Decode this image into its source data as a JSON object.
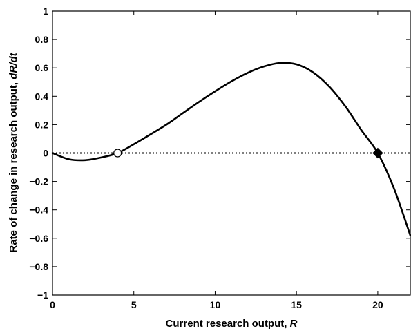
{
  "chart_data": {
    "type": "line",
    "title": "",
    "xlabel": "Current research output, ",
    "xlabel_var": "R",
    "ylabel": "Rate of change in research output,  ",
    "ylabel_var": "dR/dt",
    "xlim": [
      0,
      22
    ],
    "ylim": [
      -1,
      1
    ],
    "grid": false,
    "x_ticks": [
      0,
      5,
      10,
      15,
      20
    ],
    "y_ticks": [
      -1,
      -0.8,
      -0.6,
      -0.4,
      -0.2,
      0,
      0.2,
      0.4,
      0.6,
      0.8,
      1
    ],
    "x_tick_labels": [
      "0",
      "5",
      "10",
      "15",
      "20"
    ],
    "y_tick_labels": [
      "−1",
      "−0.8",
      "−0.6",
      "−0.4",
      "−0.2",
      "0",
      "0.2",
      "0.4",
      "0.6",
      "0.8",
      "1"
    ],
    "series": [
      {
        "style": "solid",
        "color": "#000000",
        "points": [
          [
            0,
            0
          ],
          [
            1,
            -0.043
          ],
          [
            2,
            -0.05
          ],
          [
            3,
            -0.031
          ],
          [
            4,
            0
          ],
          [
            5,
            0.062
          ],
          [
            6,
            0.13
          ],
          [
            7,
            0.2
          ],
          [
            8,
            0.28
          ],
          [
            9,
            0.36
          ],
          [
            10,
            0.435
          ],
          [
            11,
            0.505
          ],
          [
            12,
            0.565
          ],
          [
            13,
            0.61
          ],
          [
            14,
            0.635
          ],
          [
            15,
            0.625
          ],
          [
            16,
            0.57
          ],
          [
            17,
            0.47
          ],
          [
            18,
            0.33
          ],
          [
            19,
            0.16
          ],
          [
            20,
            0
          ],
          [
            21,
            -0.25
          ],
          [
            22,
            -0.58
          ]
        ]
      },
      {
        "style": "dotted",
        "color": "#000000",
        "points": [
          [
            0,
            0
          ],
          [
            22,
            0
          ]
        ]
      }
    ],
    "markers": [
      {
        "x": 4,
        "y": 0,
        "fill": "open"
      },
      {
        "x": 20,
        "y": 0,
        "fill": "filled"
      }
    ]
  }
}
